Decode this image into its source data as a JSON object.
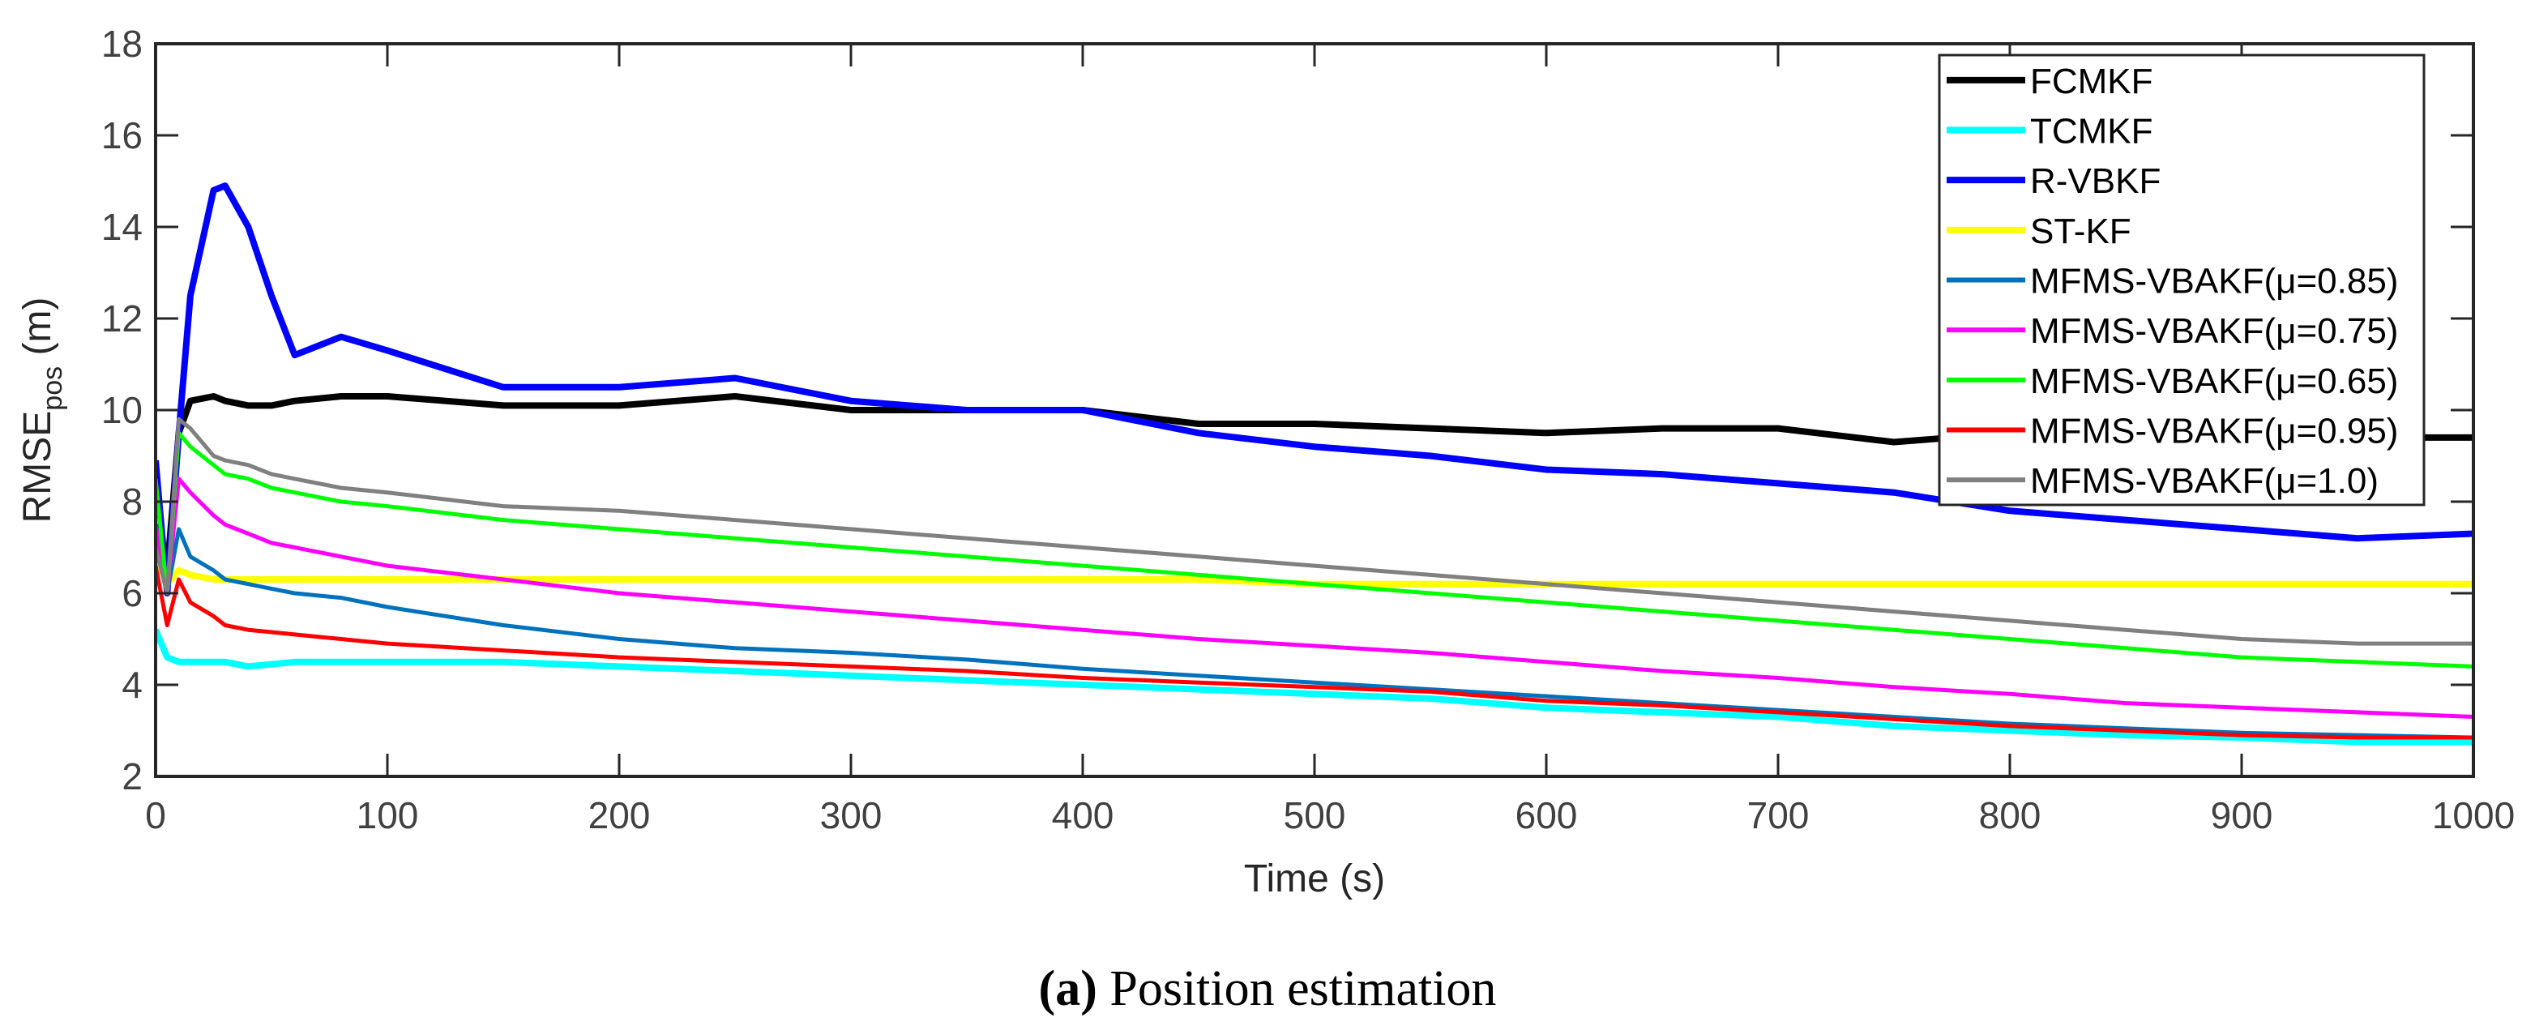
{
  "chart_data": {
    "type": "line",
    "title": "",
    "xlabel": "Time (s)",
    "ylabel": "RMSE",
    "ylabel_subscript": "pos",
    "ylabel_unit": "(m)",
    "xlim": [
      0,
      1000
    ],
    "ylim": [
      2,
      18
    ],
    "xticks": [
      0,
      100,
      200,
      300,
      400,
      500,
      600,
      700,
      800,
      900,
      1000
    ],
    "yticks": [
      2,
      4,
      6,
      8,
      10,
      12,
      14,
      16,
      18
    ],
    "grid": false,
    "legend_position": "top-right",
    "x": [
      0,
      5,
      10,
      15,
      25,
      30,
      40,
      50,
      60,
      80,
      100,
      150,
      200,
      250,
      300,
      350,
      400,
      450,
      500,
      550,
      600,
      650,
      700,
      750,
      800,
      850,
      900,
      950,
      1000
    ],
    "series": [
      {
        "name": "FCMKF",
        "color": "#000000",
        "thick": true,
        "values": [
          7.5,
          6.5,
          9.5,
          10.2,
          10.3,
          10.2,
          10.1,
          10.1,
          10.2,
          10.3,
          10.3,
          10.1,
          10.1,
          10.3,
          10.0,
          10.0,
          10.0,
          9.7,
          9.7,
          9.6,
          9.5,
          9.6,
          9.6,
          9.3,
          9.5,
          9.5,
          9.5,
          9.4,
          9.4
        ]
      },
      {
        "name": "TCMKF",
        "color": "#00ffff",
        "thick": true,
        "values": [
          5.2,
          4.6,
          4.5,
          4.5,
          4.5,
          4.5,
          4.4,
          4.45,
          4.5,
          4.5,
          4.5,
          4.5,
          4.4,
          4.3,
          4.2,
          4.1,
          4.0,
          3.9,
          3.8,
          3.7,
          3.5,
          3.4,
          3.3,
          3.1,
          3.0,
          2.9,
          2.85,
          2.75,
          2.75
        ]
      },
      {
        "name": "R-VBKF",
        "color": "#0000ff",
        "thick": true,
        "values": [
          8.9,
          6.0,
          9.5,
          12.5,
          14.8,
          14.9,
          14.0,
          12.5,
          11.2,
          11.6,
          11.3,
          10.5,
          10.5,
          10.7,
          10.2,
          10.0,
          10.0,
          9.5,
          9.2,
          9.0,
          8.7,
          8.6,
          8.4,
          8.2,
          7.8,
          7.6,
          7.4,
          7.2,
          7.3
        ]
      },
      {
        "name": "ST-KF",
        "color": "#ffff00",
        "thick": true,
        "values": [
          6.8,
          6.2,
          6.5,
          6.4,
          6.3,
          6.3,
          6.3,
          6.3,
          6.3,
          6.3,
          6.3,
          6.3,
          6.3,
          6.3,
          6.3,
          6.3,
          6.3,
          6.3,
          6.2,
          6.2,
          6.2,
          6.2,
          6.2,
          6.2,
          6.2,
          6.2,
          6.2,
          6.2,
          6.2
        ]
      },
      {
        "name": "MFMS-VBAKF(μ=0.85)",
        "color": "#0072bd",
        "thick": false,
        "values": [
          7.0,
          6.0,
          7.4,
          6.8,
          6.5,
          6.3,
          6.2,
          6.1,
          6.0,
          5.9,
          5.7,
          5.3,
          5.0,
          4.8,
          4.7,
          4.55,
          4.35,
          4.2,
          4.05,
          3.9,
          3.75,
          3.6,
          3.45,
          3.3,
          3.15,
          3.05,
          2.95,
          2.9,
          2.85
        ]
      },
      {
        "name": "MFMS-VBAKF(μ=0.75)",
        "color": "#ff00ff",
        "thick": false,
        "values": [
          7.5,
          6.0,
          8.5,
          8.2,
          7.7,
          7.5,
          7.3,
          7.1,
          7.0,
          6.8,
          6.6,
          6.3,
          6.0,
          5.8,
          5.6,
          5.4,
          5.2,
          5.0,
          4.85,
          4.7,
          4.5,
          4.3,
          4.15,
          3.95,
          3.8,
          3.6,
          3.5,
          3.4,
          3.3
        ]
      },
      {
        "name": "MFMS-VBAKF(μ=0.65)",
        "color": "#00ff00",
        "thick": false,
        "values": [
          8.5,
          6.0,
          9.5,
          9.2,
          8.8,
          8.6,
          8.5,
          8.3,
          8.2,
          8.0,
          7.9,
          7.6,
          7.4,
          7.2,
          7.0,
          6.8,
          6.6,
          6.4,
          6.2,
          6.0,
          5.8,
          5.6,
          5.4,
          5.2,
          5.0,
          4.8,
          4.6,
          4.5,
          4.4
        ]
      },
      {
        "name": "MFMS-VBAKF(μ=0.95)",
        "color": "#ff0000",
        "thick": false,
        "values": [
          6.6,
          5.3,
          6.3,
          5.8,
          5.5,
          5.3,
          5.2,
          5.15,
          5.1,
          5.0,
          4.9,
          4.75,
          4.6,
          4.5,
          4.4,
          4.3,
          4.15,
          4.05,
          3.95,
          3.85,
          3.65,
          3.55,
          3.4,
          3.25,
          3.1,
          3.0,
          2.9,
          2.85,
          2.85
        ]
      },
      {
        "name": "MFMS-VBAKF(μ=1.0)",
        "color": "#808080",
        "thick": false,
        "values": [
          7.0,
          6.0,
          9.8,
          9.6,
          9.0,
          8.9,
          8.8,
          8.6,
          8.5,
          8.3,
          8.2,
          7.9,
          7.8,
          7.6,
          7.4,
          7.2,
          7.0,
          6.8,
          6.6,
          6.4,
          6.2,
          6.0,
          5.8,
          5.6,
          5.4,
          5.2,
          5.0,
          4.9,
          4.9
        ]
      }
    ]
  },
  "caption": {
    "label": "(a)",
    "text": " Position estimation"
  }
}
